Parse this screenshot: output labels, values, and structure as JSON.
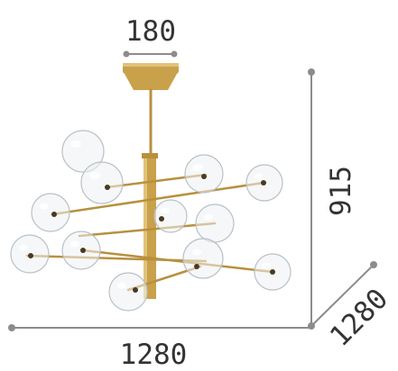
{
  "dimensions": {
    "top_width": "180",
    "height": "915",
    "depth": "1280",
    "width": "1280"
  },
  "colors": {
    "dimension_line": "#8c8c8c",
    "dimension_text": "#333333",
    "brass": "#c9a14a",
    "glass": "#eef1f3"
  }
}
